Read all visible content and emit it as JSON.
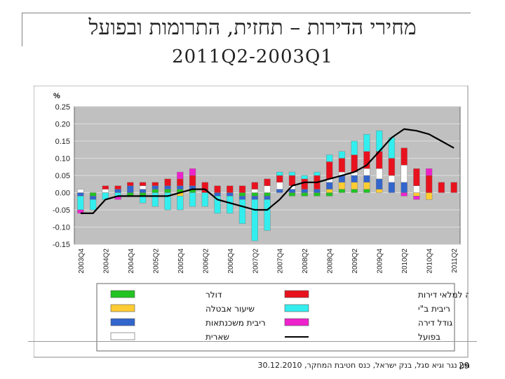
{
  "slide": {
    "title": "מחירי הדירות – תחזית, התרומות ובפועל",
    "period": "2011Q2-2003Q1",
    "footer_source": "מנן נגר וגיא סגל, בנק ישראל, כנס חטיבת המחקר, 30.12.2010",
    "page_number": "29"
  },
  "chart_data": {
    "type": "bar",
    "stacked": true,
    "y_unit_label": "%",
    "ylim": [
      -0.15,
      0.25
    ],
    "yticks": [
      "0.25",
      "0.20",
      "0.15",
      "0.10",
      "0.05",
      "0.00",
      "-0.05",
      "-0.10",
      "-0.15"
    ],
    "ytick_values": [
      0.25,
      0.2,
      0.15,
      0.1,
      0.05,
      0.0,
      -0.05,
      -0.1,
      -0.15
    ],
    "x_tick_labels": [
      "2003Q4",
      "2004Q2",
      "2004Q4",
      "2005Q2",
      "2005Q4",
      "2006Q2",
      "2006Q4",
      "2007Q2",
      "2007Q4",
      "2008Q2",
      "2008Q4",
      "2009Q2",
      "2009Q4",
      "2010Q2",
      "2010Q4",
      "2011Q2"
    ],
    "grid": true,
    "plot_background": "#c0c0c0",
    "categories": [
      "2003Q4",
      "2004Q1",
      "2004Q2",
      "2004Q3",
      "2004Q4",
      "2005Q1",
      "2005Q2",
      "2005Q3",
      "2005Q4",
      "2006Q1",
      "2006Q2",
      "2006Q3",
      "2006Q4",
      "2007Q1",
      "2007Q2",
      "2007Q3",
      "2007Q4",
      "2008Q1",
      "2008Q2",
      "2008Q3",
      "2008Q4",
      "2009Q1",
      "2009Q2",
      "2009Q3",
      "2009Q4",
      "2010Q1",
      "2010Q2",
      "2010Q3",
      "2010Q4",
      "2011Q1",
      "2011Q2"
    ],
    "series": [
      {
        "name": "דולר",
        "color": "#22c322",
        "values": [
          0.0,
          -0.01,
          0.0,
          0.0,
          -0.01,
          -0.01,
          0.01,
          0.01,
          0.01,
          0.01,
          0.0,
          0.0,
          0.0,
          -0.01,
          -0.01,
          -0.01,
          0.0,
          -0.01,
          -0.01,
          -0.01,
          -0.01,
          0.01,
          0.01,
          0.01,
          0.0,
          0.0,
          0.0,
          0.0,
          0.0,
          0.0,
          0.0
        ]
      },
      {
        "name": "שיעור אבטלה",
        "color": "#ffcc33",
        "values": [
          0.0,
          0.0,
          0.0,
          0.0,
          0.0,
          0.0,
          0.0,
          0.0,
          -0.01,
          0.0,
          0.0,
          0.0,
          0.0,
          0.0,
          0.0,
          0.0,
          0.0,
          0.0,
          0.0,
          0.0,
          0.01,
          0.02,
          0.02,
          0.02,
          0.01,
          0.0,
          0.0,
          -0.01,
          -0.02,
          0.0,
          0.0
        ]
      },
      {
        "name": "ריבית משכנתאות",
        "color": "#3366cc",
        "values": [
          -0.01,
          -0.01,
          0.0,
          0.01,
          0.02,
          0.01,
          0.01,
          0.01,
          0.01,
          0.01,
          0.0,
          -0.01,
          -0.01,
          -0.01,
          -0.01,
          -0.01,
          0.01,
          0.01,
          0.01,
          0.01,
          0.02,
          0.02,
          0.02,
          0.02,
          0.03,
          0.03,
          0.03,
          0.0,
          0.0,
          0.0,
          0.0
        ]
      },
      {
        "name": "שארית",
        "color": "#ffffff",
        "values": [
          0.01,
          0.0,
          0.01,
          0.0,
          0.0,
          0.01,
          0.0,
          0.0,
          0.0,
          0.0,
          0.0,
          0.0,
          0.0,
          0.0,
          0.01,
          0.02,
          0.02,
          0.01,
          0.0,
          0.0,
          0.01,
          0.01,
          0.01,
          0.02,
          0.03,
          0.02,
          0.05,
          0.02,
          0.0,
          0.0,
          0.0
        ]
      },
      {
        "name": "יחס אוכלוסיה למלאי דירות",
        "color": "#e8121e",
        "values": [
          0.0,
          0.0,
          0.01,
          0.01,
          0.01,
          0.01,
          0.01,
          0.02,
          0.02,
          0.03,
          0.03,
          0.02,
          0.02,
          0.02,
          0.02,
          0.02,
          0.02,
          0.03,
          0.03,
          0.04,
          0.05,
          0.04,
          0.05,
          0.05,
          0.05,
          0.05,
          0.05,
          0.05,
          0.05,
          0.03,
          0.03
        ]
      },
      {
        "name": "ריבית ב\"י",
        "color": "#33eeee",
        "values": [
          -0.04,
          -0.03,
          -0.02,
          -0.01,
          0.0,
          -0.02,
          -0.04,
          -0.05,
          -0.04,
          -0.04,
          -0.04,
          -0.05,
          -0.05,
          -0.07,
          -0.12,
          -0.09,
          0.01,
          0.01,
          0.01,
          0.01,
          0.02,
          0.02,
          0.04,
          0.05,
          0.06,
          0.06,
          0.0,
          0.0,
          0.0,
          0.0,
          0.0
        ]
      },
      {
        "name": "גודל דירה",
        "color": "#ee22cc",
        "values": [
          -0.01,
          0.0,
          0.0,
          -0.01,
          0.0,
          0.0,
          0.0,
          0.0,
          0.02,
          0.02,
          0.0,
          0.0,
          0.0,
          0.0,
          0.0,
          0.0,
          0.0,
          0.0,
          0.0,
          0.0,
          0.0,
          0.0,
          0.0,
          0.0,
          0.0,
          0.0,
          -0.01,
          -0.01,
          0.02,
          0.0,
          0.0
        ]
      },
      {
        "name": "בפועל",
        "type": "line",
        "color": "#000000",
        "values": [
          -0.06,
          -0.06,
          -0.02,
          -0.01,
          -0.01,
          -0.01,
          -0.01,
          -0.01,
          0.0,
          0.01,
          0.01,
          -0.02,
          -0.03,
          -0.04,
          -0.05,
          -0.05,
          -0.02,
          0.02,
          0.03,
          0.03,
          0.04,
          0.05,
          0.06,
          0.08,
          0.12,
          0.16,
          0.185,
          0.18,
          0.17,
          0.15,
          0.13
        ]
      }
    ],
    "legend_position": "bottom",
    "legend_order_right": [
      "יחס אוכלוסיה למלאי דירות",
      "ריבית ב\"י",
      "גודל דירה",
      "בפועל"
    ],
    "legend_order_left": [
      "דולר",
      "שיעור אבטלה",
      "ריבית משכנתאות",
      "שארית"
    ]
  }
}
